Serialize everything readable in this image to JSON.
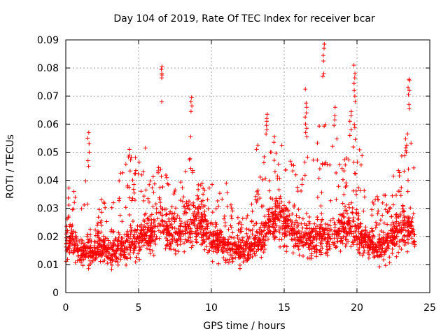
{
  "chart_data": {
    "type": "scatter",
    "title": "Day 104 of 2019, Rate Of TEC Index for receiver bcar",
    "xlabel": "GPS time / hours",
    "ylabel": "ROTI / TECUs",
    "xlim": [
      0,
      25
    ],
    "ylim": [
      0,
      0.09
    ],
    "xticks": [
      0,
      5,
      10,
      15,
      20,
      25
    ],
    "xtick_labels": [
      "0",
      "5",
      "10",
      "15",
      "20",
      "25"
    ],
    "yticks": [
      0,
      0.01,
      0.02,
      0.03,
      0.04,
      0.05,
      0.06,
      0.07,
      0.08,
      0.09
    ],
    "ytick_labels": [
      "0",
      "0.01",
      "0.02",
      "0.03",
      "0.04",
      "0.05",
      "0.06",
      "0.07",
      "0.08",
      "0.09"
    ],
    "grid": true,
    "marker": "+",
    "color": "#ff0000",
    "profile": {
      "x": [
        0,
        0.5,
        1.0,
        1.5,
        2.0,
        2.5,
        3.0,
        3.5,
        4.0,
        4.5,
        5.0,
        5.5,
        6.0,
        6.5,
        7.0,
        7.5,
        8.0,
        8.5,
        9.0,
        9.5,
        10.0,
        10.5,
        11.0,
        11.5,
        12.0,
        12.5,
        13.0,
        13.5,
        14.0,
        14.5,
        15.0,
        15.5,
        16.0,
        16.5,
        17.0,
        17.5,
        18.0,
        18.5,
        19.0,
        19.5,
        20.0,
        20.5,
        21.0,
        21.5,
        22.0,
        22.5,
        23.0,
        23.5,
        24.0
      ],
      "median": [
        0.019,
        0.018,
        0.014,
        0.016,
        0.015,
        0.016,
        0.014,
        0.015,
        0.016,
        0.018,
        0.019,
        0.02,
        0.022,
        0.025,
        0.022,
        0.02,
        0.022,
        0.025,
        0.024,
        0.022,
        0.02,
        0.018,
        0.017,
        0.015,
        0.015,
        0.015,
        0.017,
        0.02,
        0.024,
        0.026,
        0.024,
        0.022,
        0.02,
        0.018,
        0.019,
        0.02,
        0.02,
        0.021,
        0.022,
        0.024,
        0.022,
        0.018,
        0.016,
        0.016,
        0.017,
        0.019,
        0.022,
        0.025,
        0.018
      ],
      "max": [
        0.04,
        0.038,
        0.03,
        0.055,
        0.03,
        0.034,
        0.032,
        0.035,
        0.05,
        0.05,
        0.05,
        0.04,
        0.042,
        0.048,
        0.04,
        0.042,
        0.048,
        0.05,
        0.04,
        0.04,
        0.04,
        0.035,
        0.04,
        0.03,
        0.025,
        0.03,
        0.035,
        0.045,
        0.06,
        0.055,
        0.055,
        0.05,
        0.04,
        0.05,
        0.065,
        0.06,
        0.065,
        0.06,
        0.055,
        0.06,
        0.06,
        0.045,
        0.035,
        0.035,
        0.035,
        0.045,
        0.05,
        0.06,
        0.045
      ]
    },
    "spikes": [
      {
        "x": 1.55,
        "ys": [
          0.057,
          0.055,
          0.053,
          0.05,
          0.047,
          0.045
        ]
      },
      {
        "x": 4.35,
        "ys": [
          0.051,
          0.049
        ]
      },
      {
        "x": 5.45,
        "ys": [
          0.0515
        ]
      },
      {
        "x": 6.6,
        "ys": [
          0.0805,
          0.0795,
          0.078,
          0.0775,
          0.0765,
          0.068
        ]
      },
      {
        "x": 8.6,
        "ys": [
          0.0695,
          0.068,
          0.0665,
          0.0645,
          0.0555
        ]
      },
      {
        "x": 13.15,
        "ys": [
          0.0525,
          0.051
        ]
      },
      {
        "x": 13.8,
        "ys": [
          0.0635,
          0.062,
          0.061,
          0.0595,
          0.058,
          0.0565
        ]
      },
      {
        "x": 16.5,
        "ys": [
          0.0725,
          0.0675,
          0.066,
          0.064,
          0.0625,
          0.06,
          0.0585,
          0.057,
          0.0555
        ]
      },
      {
        "x": 17.7,
        "ys": [
          0.0885,
          0.087,
          0.0845,
          0.0825,
          0.078,
          0.077
        ]
      },
      {
        "x": 18.45,
        "ys": [
          0.066,
          0.063,
          0.0615,
          0.0595
        ]
      },
      {
        "x": 19.55,
        "ys": [
          0.0645,
          0.063,
          0.061,
          0.058,
          0.056
        ]
      },
      {
        "x": 19.85,
        "ys": [
          0.081,
          0.078,
          0.0765,
          0.0745,
          0.072,
          0.07,
          0.068
        ]
      },
      {
        "x": 23.55,
        "ys": [
          0.076,
          0.0755,
          0.073,
          0.072,
          0.0705,
          0.067,
          0.0655
        ]
      },
      {
        "x": 23.4,
        "ys": [
          0.0525,
          0.0505,
          0.05
        ]
      }
    ],
    "sample_count": 2400
  }
}
